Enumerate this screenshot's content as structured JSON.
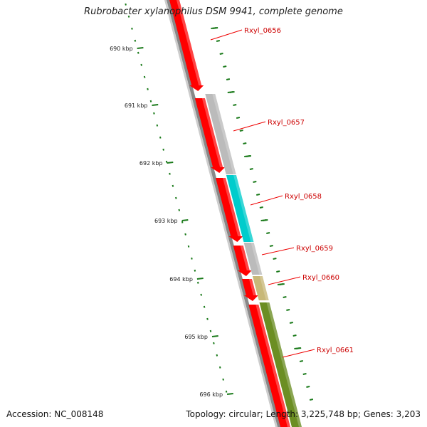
{
  "title": "Rubrobacter xylanophilus DSM 9941, complete genome",
  "accession": "Accession: NC_008148",
  "summary": "Topology: circular; Length: 3,225,748 bp; Genes: 3,203",
  "scale_labels": [
    "690 kbp",
    "691 kbp",
    "692 kbp",
    "693 kbp",
    "694 kbp",
    "695 kbp",
    "696 kbp"
  ],
  "genes": [
    {
      "name": "Rxyl_0656",
      "color": "#ff0000"
    },
    {
      "name": "Rxyl_0657",
      "color": "#bbbbbb"
    },
    {
      "name": "Rxyl_0658",
      "color": "#00cccc"
    },
    {
      "name": "Rxyl_0659",
      "color": "#bbbbbb"
    },
    {
      "name": "Rxyl_0660",
      "color": "#c8b878"
    },
    {
      "name": "Rxyl_0661",
      "color": "#6b8e23"
    }
  ],
  "colors": {
    "tick": "#1a7a1a",
    "backbone": "#888888",
    "leader": "#ee0000",
    "forward_gene": "#ff0000"
  }
}
